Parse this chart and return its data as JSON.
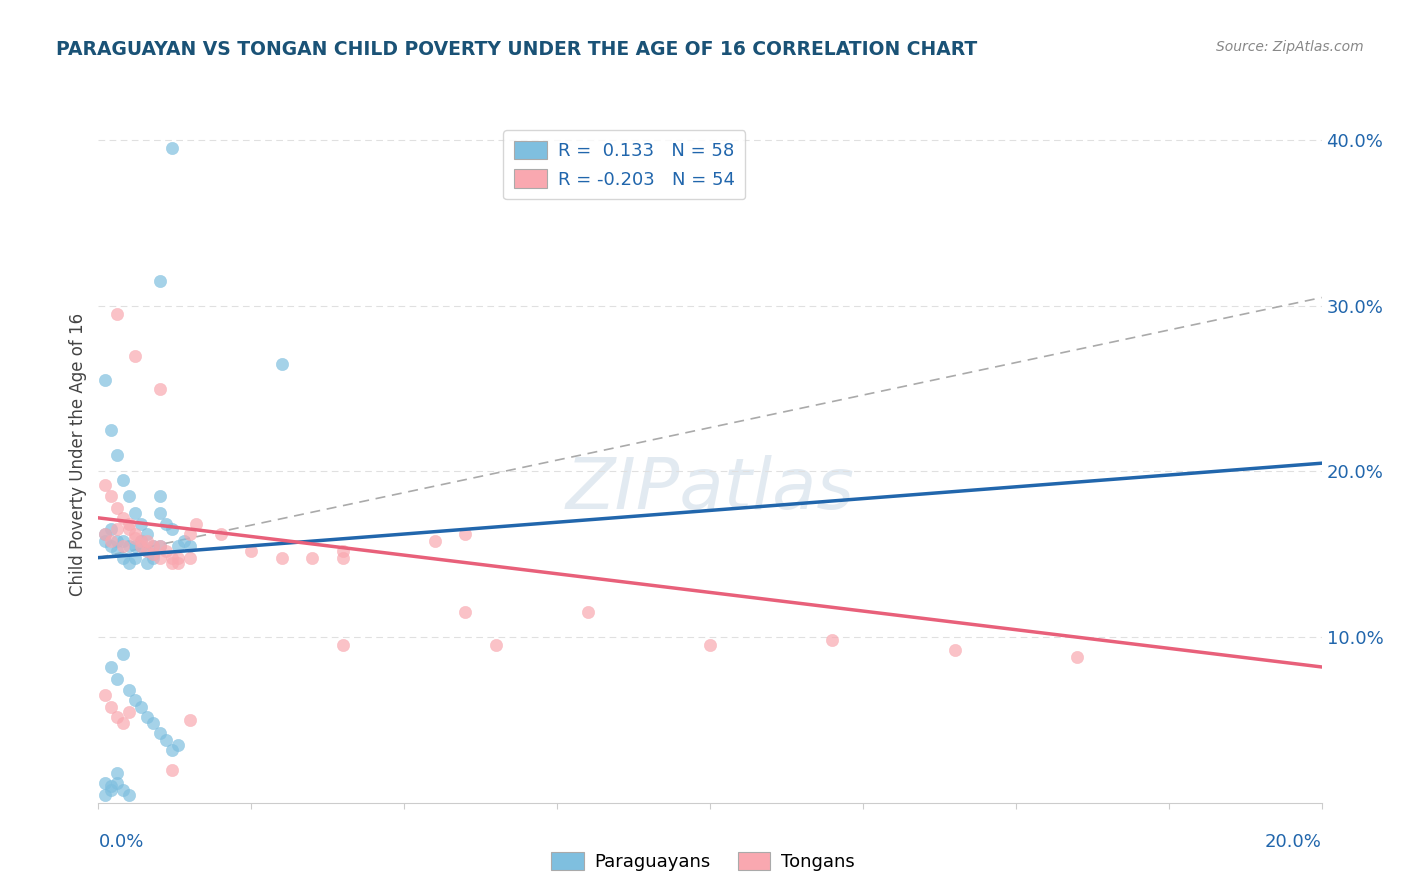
{
  "title": "PARAGUAYAN VS TONGAN CHILD POVERTY UNDER THE AGE OF 16 CORRELATION CHART",
  "source": "Source: ZipAtlas.com",
  "ylabel": "Child Poverty Under the Age of 16",
  "xlim": [
    0.0,
    0.2
  ],
  "ylim": [
    0.0,
    0.42
  ],
  "blue_color": "#7fbfdf",
  "pink_color": "#f9a8b0",
  "blue_line_color": "#2166ac",
  "pink_line_color": "#e8607a",
  "blue_trend_x": [
    0.0,
    0.2
  ],
  "blue_trend_y": [
    0.148,
    0.205
  ],
  "pink_trend_x": [
    0.0,
    0.2
  ],
  "pink_trend_y": [
    0.172,
    0.082
  ],
  "dashed_line_x": [
    0.0,
    0.2
  ],
  "dashed_line_y": [
    0.148,
    0.305
  ],
  "grid_color": "#e0e0e0",
  "dashed_color": "#aaaaaa",
  "title_color": "#1a5276",
  "tick_label_color": "#2166ac",
  "watermark": "ZIPatlas",
  "blue_x": [
    0.012,
    0.01,
    0.03,
    0.001,
    0.002,
    0.003,
    0.004,
    0.005,
    0.006,
    0.007,
    0.008,
    0.009,
    0.01,
    0.01,
    0.011,
    0.012,
    0.013,
    0.014,
    0.015,
    0.001,
    0.001,
    0.002,
    0.002,
    0.003,
    0.003,
    0.004,
    0.004,
    0.005,
    0.005,
    0.006,
    0.006,
    0.007,
    0.007,
    0.008,
    0.008,
    0.009,
    0.009,
    0.01,
    0.002,
    0.003,
    0.004,
    0.005,
    0.006,
    0.007,
    0.008,
    0.009,
    0.01,
    0.011,
    0.012,
    0.013,
    0.003,
    0.003,
    0.004,
    0.005,
    0.001,
    0.001,
    0.002,
    0.002
  ],
  "blue_y": [
    0.395,
    0.315,
    0.265,
    0.255,
    0.225,
    0.21,
    0.195,
    0.185,
    0.175,
    0.168,
    0.162,
    0.155,
    0.175,
    0.185,
    0.168,
    0.165,
    0.155,
    0.158,
    0.155,
    0.158,
    0.162,
    0.155,
    0.165,
    0.158,
    0.152,
    0.158,
    0.148,
    0.155,
    0.145,
    0.155,
    0.148,
    0.158,
    0.155,
    0.152,
    0.145,
    0.15,
    0.148,
    0.155,
    0.082,
    0.075,
    0.09,
    0.068,
    0.062,
    0.058,
    0.052,
    0.048,
    0.042,
    0.038,
    0.032,
    0.035,
    0.018,
    0.012,
    0.008,
    0.005,
    0.012,
    0.005,
    0.008,
    0.01
  ],
  "pink_x": [
    0.003,
    0.006,
    0.01,
    0.001,
    0.002,
    0.003,
    0.004,
    0.005,
    0.006,
    0.007,
    0.008,
    0.009,
    0.01,
    0.011,
    0.012,
    0.013,
    0.015,
    0.016,
    0.001,
    0.002,
    0.003,
    0.004,
    0.005,
    0.006,
    0.007,
    0.008,
    0.009,
    0.01,
    0.012,
    0.013,
    0.015,
    0.02,
    0.025,
    0.03,
    0.035,
    0.04,
    0.055,
    0.06,
    0.04,
    0.06,
    0.04,
    0.065,
    0.08,
    0.1,
    0.12,
    0.14,
    0.16,
    0.001,
    0.002,
    0.003,
    0.004,
    0.005,
    0.012,
    0.015
  ],
  "pink_y": [
    0.295,
    0.27,
    0.25,
    0.192,
    0.185,
    0.178,
    0.172,
    0.168,
    0.162,
    0.158,
    0.152,
    0.155,
    0.148,
    0.152,
    0.145,
    0.148,
    0.162,
    0.168,
    0.162,
    0.158,
    0.165,
    0.155,
    0.165,
    0.16,
    0.155,
    0.158,
    0.15,
    0.155,
    0.148,
    0.145,
    0.148,
    0.162,
    0.152,
    0.148,
    0.148,
    0.152,
    0.158,
    0.115,
    0.148,
    0.162,
    0.095,
    0.095,
    0.115,
    0.095,
    0.098,
    0.092,
    0.088,
    0.065,
    0.058,
    0.052,
    0.048,
    0.055,
    0.02,
    0.05
  ]
}
